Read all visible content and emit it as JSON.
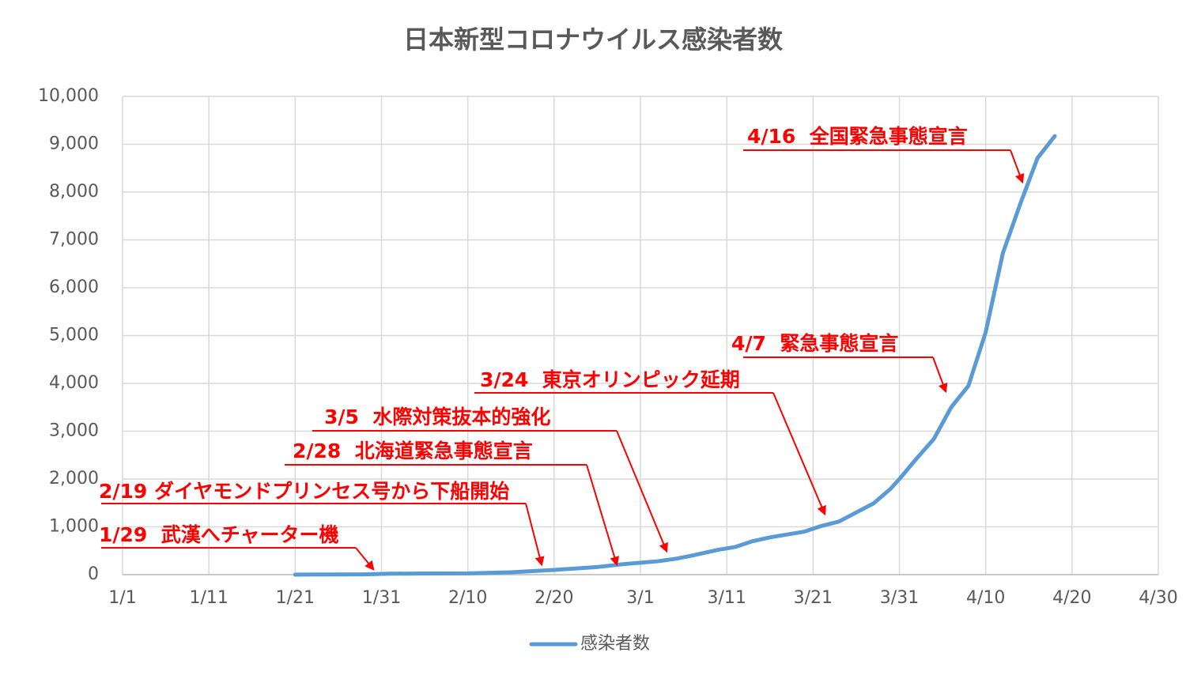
{
  "chart_data": {
    "type": "line",
    "title": "日本新型コロナウイルス感染者数",
    "x": [
      "1/21",
      "1/25",
      "1/29",
      "2/1",
      "2/5",
      "2/10",
      "2/15",
      "2/20",
      "2/25",
      "2/28",
      "3/1",
      "3/3",
      "3/5",
      "3/7",
      "3/10",
      "3/12",
      "3/14",
      "3/16",
      "3/18",
      "3/20",
      "3/22",
      "3/24",
      "3/26",
      "3/28",
      "3/30",
      "3/31",
      "4/2",
      "4/4",
      "4/6",
      "4/8",
      "4/10",
      "4/12",
      "4/14",
      "4/16",
      "4/18"
    ],
    "series": [
      {
        "name": "感染者数",
        "color": "#5b9bd5",
        "values": [
          1,
          4,
          7,
          20,
          25,
          26,
          50,
          100,
          160,
          220,
          250,
          280,
          330,
          400,
          520,
          580,
          700,
          780,
          840,
          900,
          1020,
          1110,
          1300,
          1490,
          1800,
          2000,
          2430,
          2840,
          3500,
          3950,
          5070,
          6730,
          7750,
          8710,
          9170
        ]
      }
    ],
    "xlim": [
      "1/1",
      "4/30"
    ],
    "xticks": [
      "1/1",
      "1/11",
      "1/21",
      "1/31",
      "2/10",
      "2/20",
      "3/1",
      "3/11",
      "3/21",
      "3/31",
      "4/10",
      "4/20",
      "4/30"
    ],
    "ylim": [
      0,
      10000
    ],
    "yticks": [
      0,
      {
        "value": 1000,
        "label": "1,000"
      },
      {
        "value": 2000,
        "label": "2,000"
      },
      {
        "value": 3000,
        "label": "3,000"
      },
      {
        "value": 4000,
        "label": "4,000"
      },
      {
        "value": 5000,
        "label": "5,000"
      },
      {
        "value": 6000,
        "label": "6,000"
      },
      {
        "value": 7000,
        "label": "7,000"
      },
      {
        "value": 8000,
        "label": "8,000"
      },
      {
        "value": 9000,
        "label": "9,000"
      },
      {
        "value": 10000,
        "label": "10,000"
      }
    ],
    "grid": true,
    "annotations": [
      "1/29  武漢へチャーター機",
      "2/19 ダイヤモンドプリンセス号から下船開始",
      "2/28  北海道緊急事態宣言",
      "3/5  水際対策抜本的強化",
      "3/24  東京オリンピック延期",
      "4/7  緊急事態宣言",
      "4/16  全国緊急事態宣言"
    ]
  }
}
